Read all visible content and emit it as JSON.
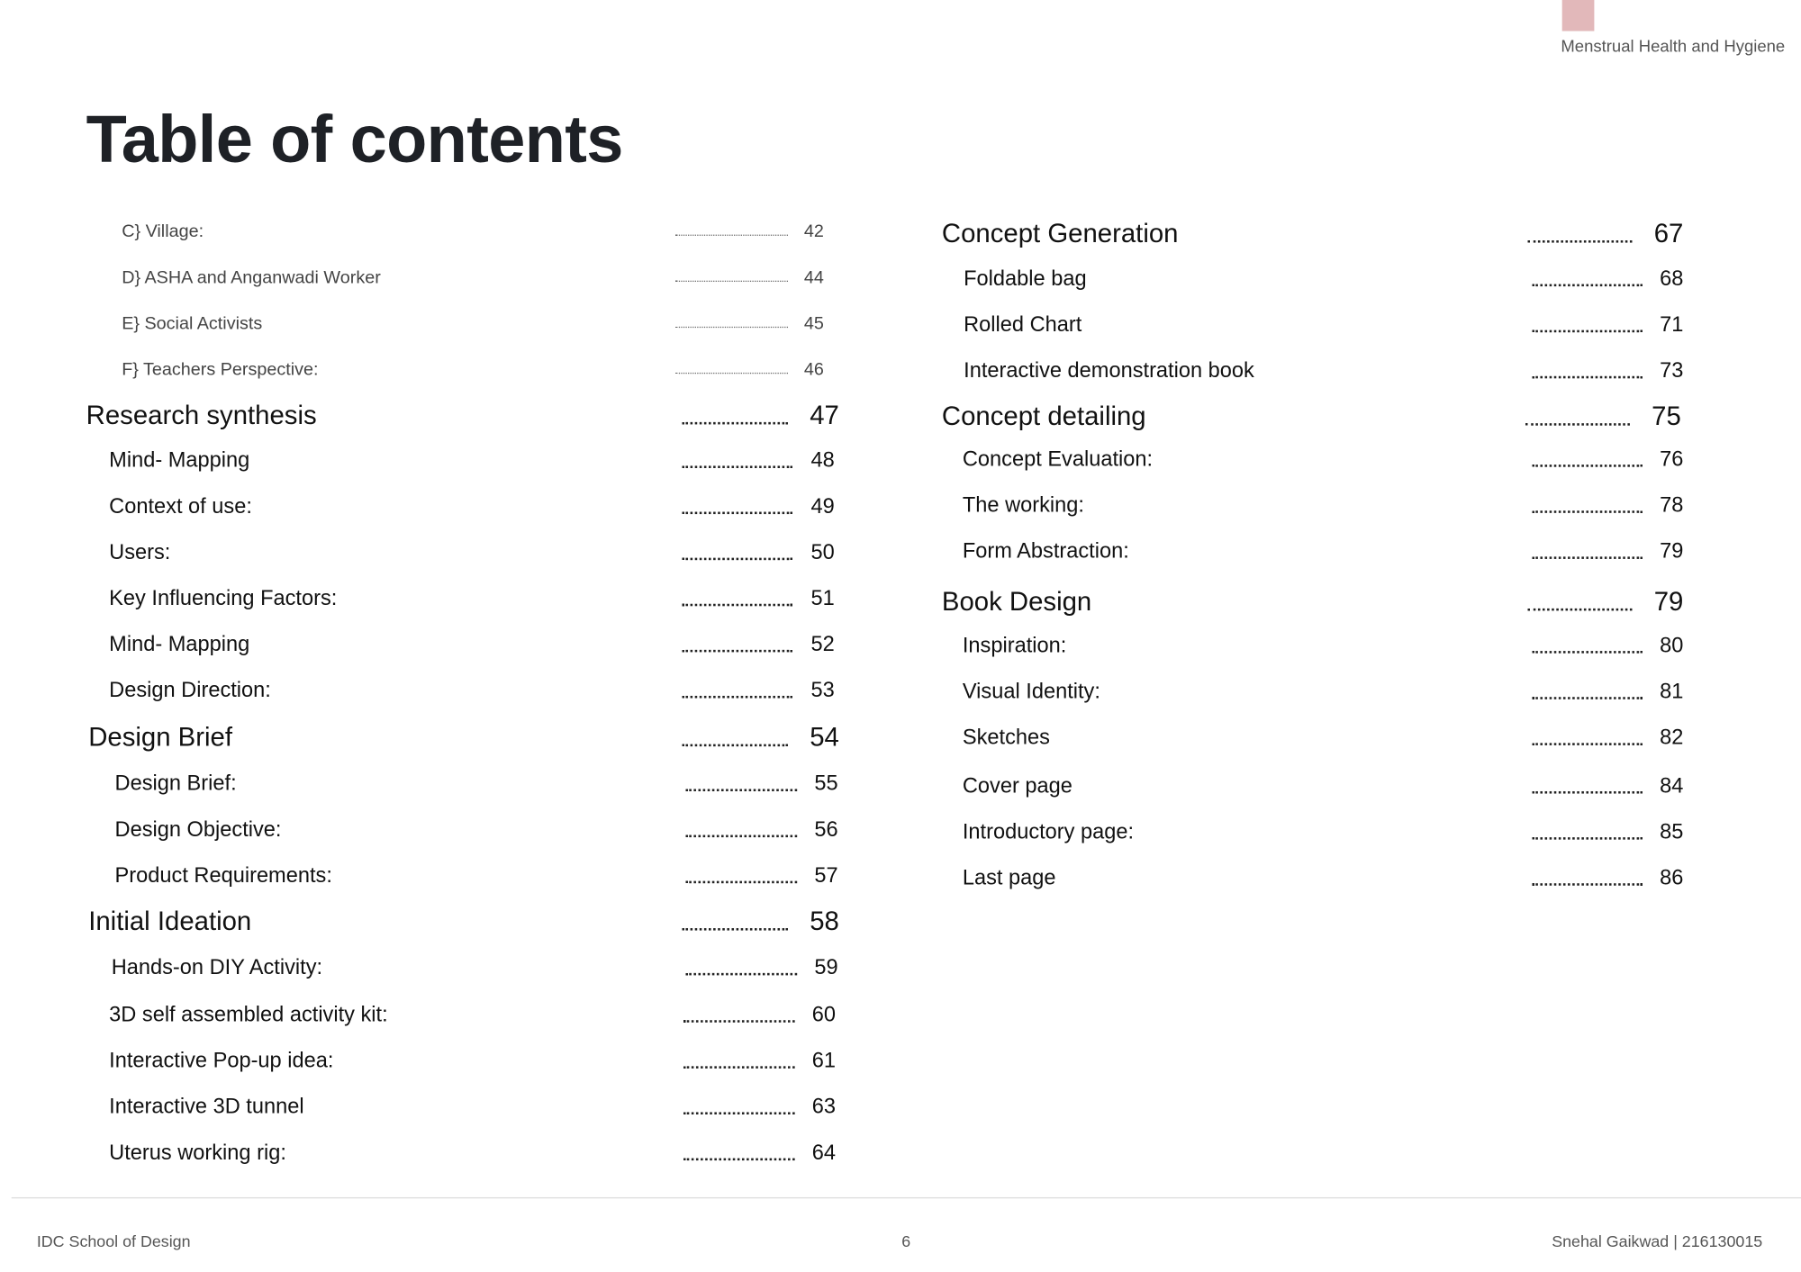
{
  "header": {
    "document_subtitle": "Menstrual Health and Hygiene",
    "accent_color": "#e2b8ba"
  },
  "title": "Table of contents",
  "toc": {
    "left": [
      {
        "label": "C} Village:",
        "page": "42",
        "level": "sub-light"
      },
      {
        "label": "D} ASHA and Anganwadi Worker",
        "page": "44",
        "level": "sub-light"
      },
      {
        "label": "E} Social Activists",
        "page": "45",
        "level": "sub-light"
      },
      {
        "label": "F} Teachers Perspective:",
        "page": "46",
        "level": "sub-light"
      },
      {
        "label": "Research synthesis",
        "page": "47",
        "level": "section"
      },
      {
        "label": "Mind- Mapping",
        "page": "48",
        "level": "item"
      },
      {
        "label": "Context of use:",
        "page": "49",
        "level": "item"
      },
      {
        "label": "Users:",
        "page": "50",
        "level": "item"
      },
      {
        "label": "Key Influencing Factors:",
        "page": "51",
        "level": "item"
      },
      {
        "label": "Mind- Mapping",
        "page": "52",
        "level": "item"
      },
      {
        "label": "Design Direction:",
        "page": "53",
        "level": "item"
      },
      {
        "label": "Design Brief",
        "page": "54",
        "level": "section"
      },
      {
        "label": "Design Brief:",
        "page": "55",
        "level": "item"
      },
      {
        "label": "Design Objective:",
        "page": "56",
        "level": "item"
      },
      {
        "label": "Product Requirements:",
        "page": "57",
        "level": "item"
      },
      {
        "label": "Initial Ideation",
        "page": "58",
        "level": "section"
      },
      {
        "label": "Hands-on DIY Activity:",
        "page": "59",
        "level": "item"
      },
      {
        "label": "3D self assembled activity kit:",
        "page": "60",
        "level": "item"
      },
      {
        "label": "Interactive Pop-up idea:",
        "page": "61",
        "level": "item"
      },
      {
        "label": "Interactive 3D tunnel",
        "page": "63",
        "level": "item"
      },
      {
        "label": "Uterus working rig:",
        "page": "64",
        "level": "item"
      }
    ],
    "right": [
      {
        "label": "Concept Generation",
        "page": "67",
        "level": "section"
      },
      {
        "label": "Foldable bag",
        "page": "68",
        "level": "item"
      },
      {
        "label": "Rolled Chart",
        "page": "71",
        "level": "item"
      },
      {
        "label": "Interactive demonstration book",
        "page": "73",
        "level": "item"
      },
      {
        "label": "Concept detailing",
        "page": "75",
        "level": "section"
      },
      {
        "label": "Concept Evaluation:",
        "page": "76",
        "level": "item"
      },
      {
        "label": "The working:",
        "page": "78",
        "level": "item"
      },
      {
        "label": "Form Abstraction:",
        "page": "79",
        "level": "item"
      },
      {
        "label": "Book Design",
        "page": "79",
        "level": "section"
      },
      {
        "label": "Inspiration:",
        "page": "80",
        "level": "item"
      },
      {
        "label": "Visual Identity:",
        "page": "81",
        "level": "item"
      },
      {
        "label": "Sketches",
        "page": "82",
        "level": "item"
      },
      {
        "label": "Cover page",
        "page": "84",
        "level": "item"
      },
      {
        "label": "Introductory page:",
        "page": "85",
        "level": "item"
      },
      {
        "label": "Last page",
        "page": "86",
        "level": "item"
      }
    ]
  },
  "footer": {
    "left": "IDC School of Design",
    "page_number": "6",
    "right": "Snehal Gaikwad | 216130015"
  }
}
